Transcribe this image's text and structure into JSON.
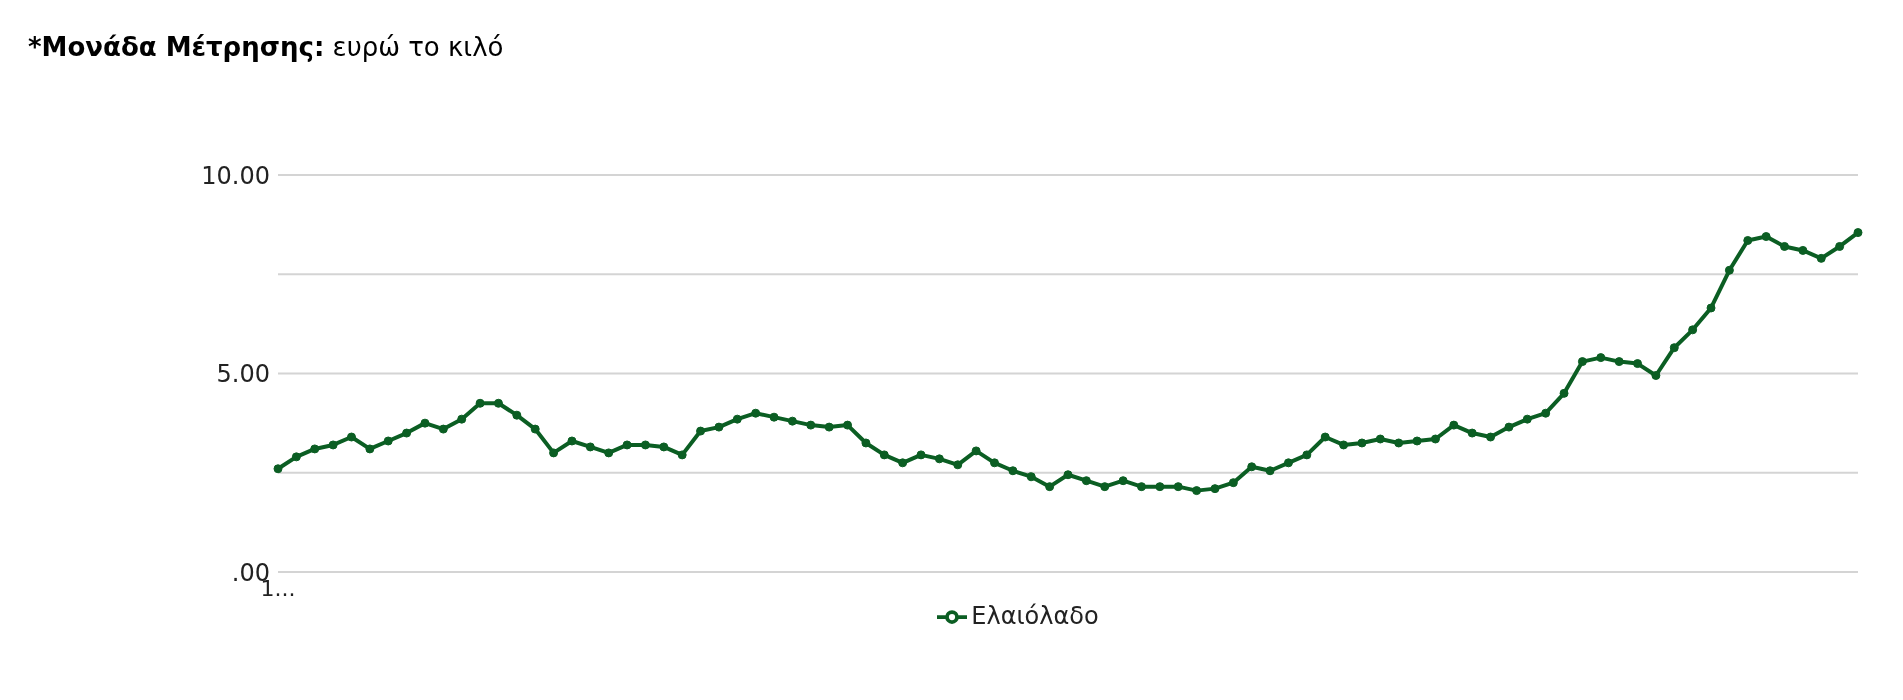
{
  "chart_data": {
    "type": "line",
    "title": "*Μονάδα Μέτρησης: ευρώ το κιλό",
    "categories": [
      "1...",
      null,
      null,
      null,
      null,
      null,
      null,
      null,
      null,
      null,
      null,
      null,
      null,
      null,
      null,
      null,
      null,
      null,
      null,
      null,
      null,
      null,
      null,
      null,
      null,
      null,
      null,
      null,
      null,
      null,
      null,
      null,
      null,
      null,
      null,
      null,
      null,
      null,
      null,
      null,
      null,
      null,
      null,
      null,
      null,
      null,
      null,
      null,
      null,
      null,
      null,
      null,
      null,
      null,
      null,
      null,
      null,
      null,
      null,
      null,
      null,
      null,
      null,
      null,
      null,
      null,
      null,
      null,
      null,
      null,
      null,
      null,
      null,
      null,
      null,
      null,
      null,
      null,
      null,
      null,
      null,
      null,
      null,
      null,
      null,
      null,
      null
    ],
    "series": [
      {
        "name": "Ελαιόλαδο",
        "color": "#0b5e23",
        "values": [
          2.6,
          2.9,
          3.1,
          3.2,
          3.4,
          3.1,
          3.3,
          3.5,
          3.75,
          3.6,
          3.85,
          4.25,
          4.25,
          3.95,
          3.6,
          3.0,
          3.3,
          3.15,
          3.0,
          3.2,
          3.2,
          3.15,
          2.95,
          3.55,
          3.65,
          3.85,
          4.0,
          3.9,
          3.8,
          3.7,
          3.65,
          3.7,
          3.25,
          2.95,
          2.75,
          2.95,
          2.85,
          2.7,
          3.05,
          2.75,
          2.55,
          2.4,
          2.15,
          2.45,
          2.3,
          2.15,
          2.3,
          2.15,
          2.15,
          2.15,
          2.05,
          2.1,
          2.25,
          2.65,
          2.55,
          2.75,
          2.95,
          3.4,
          3.2,
          3.25,
          3.35,
          3.25,
          3.3,
          3.35,
          3.7,
          3.5,
          3.4,
          3.65,
          3.85,
          4.0,
          4.5,
          5.3,
          5.4,
          5.3,
          5.25,
          4.95,
          5.65,
          6.1,
          6.65,
          7.6,
          8.35,
          8.45,
          8.2,
          8.1,
          7.9,
          8.2,
          8.55
        ]
      }
    ],
    "ylim": [
      0,
      10
    ],
    "yticks": [
      {
        "value": 0,
        "label": ".00"
      },
      {
        "value": 2.5,
        "label": null
      },
      {
        "value": 5,
        "label": "5.00"
      },
      {
        "value": 7.5,
        "label": null
      },
      {
        "value": 10,
        "label": "10.00"
      }
    ],
    "grid": "y",
    "legend": "bottom",
    "marker": "circle",
    "line_style": "solid"
  }
}
